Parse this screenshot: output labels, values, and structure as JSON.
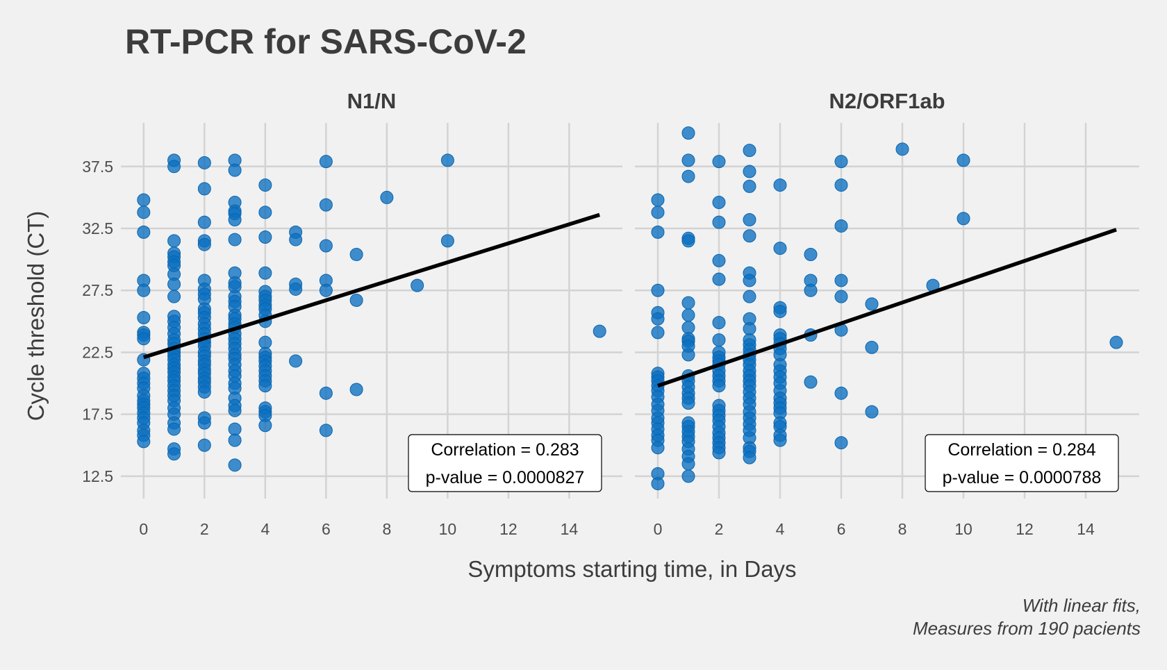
{
  "colors": {
    "background": "#f1f1f1",
    "points": "#0b6fc0",
    "fit_line": "#000000",
    "grid": "#d3d3d3"
  },
  "chart_data": {
    "type": "scatter",
    "title": "RT-PCR for SARS-CoV-2",
    "xlabel": "Symptoms starting time, in Days",
    "ylabel": "Cycle threshold (CT)",
    "caption_lines": [
      "With linear fits,",
      "Measures from 190 pacients"
    ],
    "xlim": [
      -0.75,
      15.75
    ],
    "ylim": [
      10.7,
      41.3
    ],
    "x_ticks": [
      0,
      2,
      4,
      6,
      8,
      10,
      12,
      14
    ],
    "x_tick_labels": [
      "0",
      "2",
      "4",
      "6",
      "8",
      "10",
      "12",
      "14"
    ],
    "y_ticks": [
      12.5,
      17.5,
      22.5,
      27.5,
      32.5,
      37.5
    ],
    "y_tick_labels": [
      "12.5",
      "17.5",
      "22.5",
      "27.5",
      "32.5",
      "37.5"
    ],
    "grid": true,
    "legend": "none",
    "panels": [
      {
        "name": "N1/N",
        "fit": {
          "x": [
            0,
            15
          ],
          "y": [
            22.1,
            33.6
          ]
        },
        "annotation_lines": [
          "Correlation = 0.283",
          "p-value = 0.0000827"
        ],
        "points": [
          [
            0,
            34.8
          ],
          [
            0,
            33.8
          ],
          [
            0,
            32.2
          ],
          [
            0,
            28.3
          ],
          [
            0,
            27.5
          ],
          [
            0,
            25.3
          ],
          [
            0,
            24.1
          ],
          [
            0,
            23.9
          ],
          [
            0,
            23.6
          ],
          [
            0,
            21.9
          ],
          [
            0,
            20.8
          ],
          [
            0,
            20.4
          ],
          [
            0,
            20.0
          ],
          [
            0,
            19.6
          ],
          [
            0,
            19.0
          ],
          [
            0,
            18.6
          ],
          [
            0,
            18.3
          ],
          [
            0,
            18.0
          ],
          [
            0,
            17.6
          ],
          [
            0,
            17.2
          ],
          [
            0,
            16.8
          ],
          [
            0,
            16.2
          ],
          [
            0,
            15.8
          ],
          [
            0,
            15.3
          ],
          [
            1,
            38.0
          ],
          [
            1,
            37.5
          ],
          [
            1,
            31.5
          ],
          [
            1,
            30.5
          ],
          [
            1,
            30.2
          ],
          [
            1,
            29.8
          ],
          [
            1,
            29.5
          ],
          [
            1,
            28.8
          ],
          [
            1,
            28.0
          ],
          [
            1,
            27.0
          ],
          [
            1,
            25.4
          ],
          [
            1,
            25.0
          ],
          [
            1,
            24.5
          ],
          [
            1,
            24.0
          ],
          [
            1,
            23.5
          ],
          [
            1,
            23.2
          ],
          [
            1,
            22.8
          ],
          [
            1,
            22.5
          ],
          [
            1,
            22.2
          ],
          [
            1,
            21.9
          ],
          [
            1,
            21.5
          ],
          [
            1,
            21.2
          ],
          [
            1,
            20.9
          ],
          [
            1,
            20.5
          ],
          [
            1,
            20.2
          ],
          [
            1,
            19.8
          ],
          [
            1,
            19.4
          ],
          [
            1,
            19.0
          ],
          [
            1,
            18.6
          ],
          [
            1,
            18.0
          ],
          [
            1,
            17.5
          ],
          [
            1,
            16.8
          ],
          [
            1,
            16.3
          ],
          [
            1,
            14.7
          ],
          [
            1,
            14.3
          ],
          [
            2,
            37.8
          ],
          [
            2,
            35.7
          ],
          [
            2,
            33.0
          ],
          [
            2,
            31.5
          ],
          [
            2,
            31.2
          ],
          [
            2,
            28.3
          ],
          [
            2,
            27.6
          ],
          [
            2,
            27.2
          ],
          [
            2,
            26.8
          ],
          [
            2,
            26.0
          ],
          [
            2,
            25.7
          ],
          [
            2,
            25.3
          ],
          [
            2,
            24.8
          ],
          [
            2,
            24.4
          ],
          [
            2,
            24.0
          ],
          [
            2,
            23.6
          ],
          [
            2,
            23.3
          ],
          [
            2,
            23.0
          ],
          [
            2,
            22.5
          ],
          [
            2,
            22.2
          ],
          [
            2,
            21.8
          ],
          [
            2,
            21.5
          ],
          [
            2,
            21.1
          ],
          [
            2,
            20.8
          ],
          [
            2,
            20.4
          ],
          [
            2,
            20.1
          ],
          [
            2,
            19.7
          ],
          [
            2,
            19.3
          ],
          [
            2,
            17.2
          ],
          [
            2,
            16.8
          ],
          [
            2,
            15.0
          ],
          [
            3,
            38.0
          ],
          [
            3,
            37.2
          ],
          [
            3,
            34.6
          ],
          [
            3,
            33.9
          ],
          [
            3,
            33.7
          ],
          [
            3,
            33.2
          ],
          [
            3,
            31.6
          ],
          [
            3,
            28.9
          ],
          [
            3,
            28.1
          ],
          [
            3,
            27.8
          ],
          [
            3,
            27.0
          ],
          [
            3,
            26.6
          ],
          [
            3,
            26.2
          ],
          [
            3,
            25.5
          ],
          [
            3,
            25.2
          ],
          [
            3,
            24.8
          ],
          [
            3,
            24.5
          ],
          [
            3,
            24.0
          ],
          [
            3,
            23.6
          ],
          [
            3,
            23.2
          ],
          [
            3,
            22.8
          ],
          [
            3,
            22.3
          ],
          [
            3,
            22.0
          ],
          [
            3,
            21.5
          ],
          [
            3,
            21.0
          ],
          [
            3,
            20.6
          ],
          [
            3,
            20.0
          ],
          [
            3,
            19.6
          ],
          [
            3,
            18.8
          ],
          [
            3,
            18.2
          ],
          [
            3,
            17.8
          ],
          [
            3,
            16.3
          ],
          [
            3,
            15.4
          ],
          [
            3,
            13.4
          ],
          [
            4,
            36.0
          ],
          [
            4,
            33.8
          ],
          [
            4,
            31.8
          ],
          [
            4,
            28.9
          ],
          [
            4,
            27.4
          ],
          [
            4,
            27.0
          ],
          [
            4,
            26.7
          ],
          [
            4,
            26.3
          ],
          [
            4,
            26.0
          ],
          [
            4,
            25.5
          ],
          [
            4,
            25.0
          ],
          [
            4,
            23.3
          ],
          [
            4,
            22.4
          ],
          [
            4,
            22.1
          ],
          [
            4,
            21.8
          ],
          [
            4,
            21.4
          ],
          [
            4,
            21.0
          ],
          [
            4,
            20.6
          ],
          [
            4,
            20.2
          ],
          [
            4,
            19.8
          ],
          [
            4,
            18.0
          ],
          [
            4,
            17.7
          ],
          [
            4,
            17.4
          ],
          [
            4,
            16.6
          ],
          [
            5,
            32.2
          ],
          [
            5,
            31.6
          ],
          [
            5,
            28.0
          ],
          [
            5,
            27.6
          ],
          [
            5,
            21.8
          ],
          [
            6,
            37.9
          ],
          [
            6,
            34.4
          ],
          [
            6,
            31.1
          ],
          [
            6,
            28.3
          ],
          [
            6,
            27.5
          ],
          [
            6,
            19.2
          ],
          [
            6,
            16.2
          ],
          [
            7,
            30.4
          ],
          [
            7,
            26.7
          ],
          [
            7,
            19.5
          ],
          [
            8,
            35.0
          ],
          [
            9,
            27.9
          ],
          [
            10,
            38.0
          ],
          [
            10,
            31.5
          ],
          [
            15,
            24.2
          ]
        ]
      },
      {
        "name": "N2/ORF1ab",
        "fit": {
          "x": [
            0,
            15
          ],
          "y": [
            19.8,
            32.4
          ]
        },
        "annotation_lines": [
          "Correlation = 0.284",
          "p-value = 0.0000788"
        ],
        "points": [
          [
            0,
            34.8
          ],
          [
            0,
            33.8
          ],
          [
            0,
            32.2
          ],
          [
            0,
            27.5
          ],
          [
            0,
            25.7
          ],
          [
            0,
            25.2
          ],
          [
            0,
            24.1
          ],
          [
            0,
            20.8
          ],
          [
            0,
            20.5
          ],
          [
            0,
            20.2
          ],
          [
            0,
            19.8
          ],
          [
            0,
            19.4
          ],
          [
            0,
            18.9
          ],
          [
            0,
            18.3
          ],
          [
            0,
            17.8
          ],
          [
            0,
            17.2
          ],
          [
            0,
            16.8
          ],
          [
            0,
            16.3
          ],
          [
            0,
            15.8
          ],
          [
            0,
            15.4
          ],
          [
            0,
            14.8
          ],
          [
            0,
            12.7
          ],
          [
            0,
            11.9
          ],
          [
            1,
            40.2
          ],
          [
            1,
            38.0
          ],
          [
            1,
            36.7
          ],
          [
            1,
            31.7
          ],
          [
            1,
            31.5
          ],
          [
            1,
            26.5
          ],
          [
            1,
            25.5
          ],
          [
            1,
            24.5
          ],
          [
            1,
            23.6
          ],
          [
            1,
            23.4
          ],
          [
            1,
            23.0
          ],
          [
            1,
            22.3
          ],
          [
            1,
            20.6
          ],
          [
            1,
            20.2
          ],
          [
            1,
            19.7
          ],
          [
            1,
            19.2
          ],
          [
            1,
            18.8
          ],
          [
            1,
            18.4
          ],
          [
            1,
            16.8
          ],
          [
            1,
            16.5
          ],
          [
            1,
            16.1
          ],
          [
            1,
            15.7
          ],
          [
            1,
            15.3
          ],
          [
            1,
            14.7
          ],
          [
            1,
            14.1
          ],
          [
            1,
            13.5
          ],
          [
            1,
            12.5
          ],
          [
            2,
            37.9
          ],
          [
            2,
            34.6
          ],
          [
            2,
            33.0
          ],
          [
            2,
            29.9
          ],
          [
            2,
            28.4
          ],
          [
            2,
            24.9
          ],
          [
            2,
            23.5
          ],
          [
            2,
            22.5
          ],
          [
            2,
            22.1
          ],
          [
            2,
            21.8
          ],
          [
            2,
            21.5
          ],
          [
            2,
            21.0
          ],
          [
            2,
            20.6
          ],
          [
            2,
            20.2
          ],
          [
            2,
            19.8
          ],
          [
            2,
            18.2
          ],
          [
            2,
            17.8
          ],
          [
            2,
            17.4
          ],
          [
            2,
            17.0
          ],
          [
            2,
            16.5
          ],
          [
            2,
            16.0
          ],
          [
            2,
            15.6
          ],
          [
            2,
            15.2
          ],
          [
            2,
            14.8
          ],
          [
            2,
            14.4
          ],
          [
            3,
            38.8
          ],
          [
            3,
            37.1
          ],
          [
            3,
            35.9
          ],
          [
            3,
            33.2
          ],
          [
            3,
            31.9
          ],
          [
            3,
            28.9
          ],
          [
            3,
            28.3
          ],
          [
            3,
            27.0
          ],
          [
            3,
            25.2
          ],
          [
            3,
            24.4
          ],
          [
            3,
            23.5
          ],
          [
            3,
            23.1
          ],
          [
            3,
            22.7
          ],
          [
            3,
            22.3
          ],
          [
            3,
            21.9
          ],
          [
            3,
            21.5
          ],
          [
            3,
            21.0
          ],
          [
            3,
            20.6
          ],
          [
            3,
            20.2
          ],
          [
            3,
            19.8
          ],
          [
            3,
            19.3
          ],
          [
            3,
            18.8
          ],
          [
            3,
            18.3
          ],
          [
            3,
            17.7
          ],
          [
            3,
            17.2
          ],
          [
            3,
            16.7
          ],
          [
            3,
            16.2
          ],
          [
            3,
            15.6
          ],
          [
            3,
            14.8
          ],
          [
            3,
            14.5
          ],
          [
            3,
            14.0
          ],
          [
            4,
            36.0
          ],
          [
            4,
            30.9
          ],
          [
            4,
            26.1
          ],
          [
            4,
            25.8
          ],
          [
            4,
            23.9
          ],
          [
            4,
            23.6
          ],
          [
            4,
            23.2
          ],
          [
            4,
            22.8
          ],
          [
            4,
            22.3
          ],
          [
            4,
            21.5
          ],
          [
            4,
            21.0
          ],
          [
            4,
            20.5
          ],
          [
            4,
            20.0
          ],
          [
            4,
            19.4
          ],
          [
            4,
            18.8
          ],
          [
            4,
            18.4
          ],
          [
            4,
            18.0
          ],
          [
            4,
            17.6
          ],
          [
            4,
            16.8
          ],
          [
            4,
            16.5
          ],
          [
            4,
            15.8
          ],
          [
            4,
            15.4
          ],
          [
            5,
            30.4
          ],
          [
            5,
            28.3
          ],
          [
            5,
            27.5
          ],
          [
            5,
            23.9
          ],
          [
            5,
            20.1
          ],
          [
            6,
            37.9
          ],
          [
            6,
            36.0
          ],
          [
            6,
            32.7
          ],
          [
            6,
            28.3
          ],
          [
            6,
            27.0
          ],
          [
            6,
            24.3
          ],
          [
            6,
            19.2
          ],
          [
            6,
            15.2
          ],
          [
            7,
            26.4
          ],
          [
            7,
            22.9
          ],
          [
            7,
            17.7
          ],
          [
            8,
            38.9
          ],
          [
            9,
            27.9
          ],
          [
            10,
            38.0
          ],
          [
            10,
            33.3
          ],
          [
            15,
            23.3
          ]
        ]
      }
    ]
  }
}
